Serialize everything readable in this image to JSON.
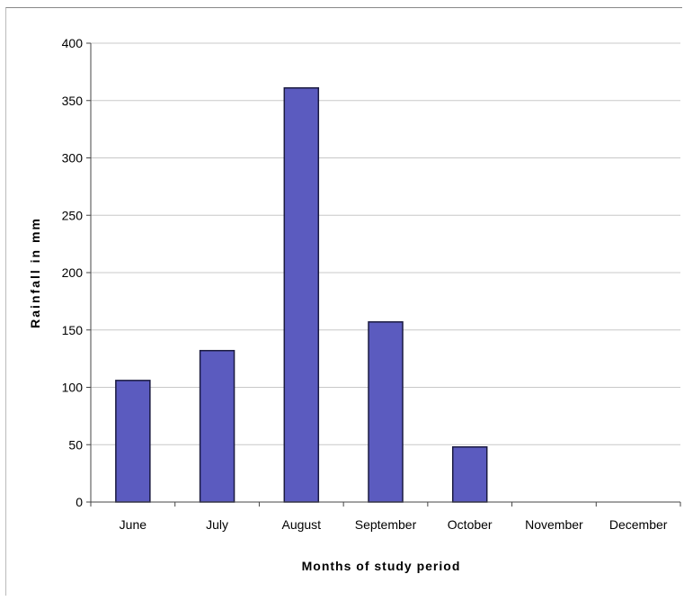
{
  "chart_data": {
    "type": "bar",
    "categories": [
      "June",
      "July",
      "August",
      "September",
      "October",
      "November",
      "December"
    ],
    "values": [
      106,
      132,
      361,
      157,
      48,
      0,
      0
    ],
    "xlabel": "Months of study period",
    "ylabel": "Rainfall in mm",
    "ylim": [
      0,
      400
    ],
    "yticks": [
      0,
      50,
      100,
      150,
      200,
      250,
      300,
      350,
      400
    ],
    "grid": true,
    "legend": "none",
    "bar_color": "#5b5bbf",
    "bar_edge_color": "#1a1a40",
    "grid_color": "#c8c8c8"
  }
}
